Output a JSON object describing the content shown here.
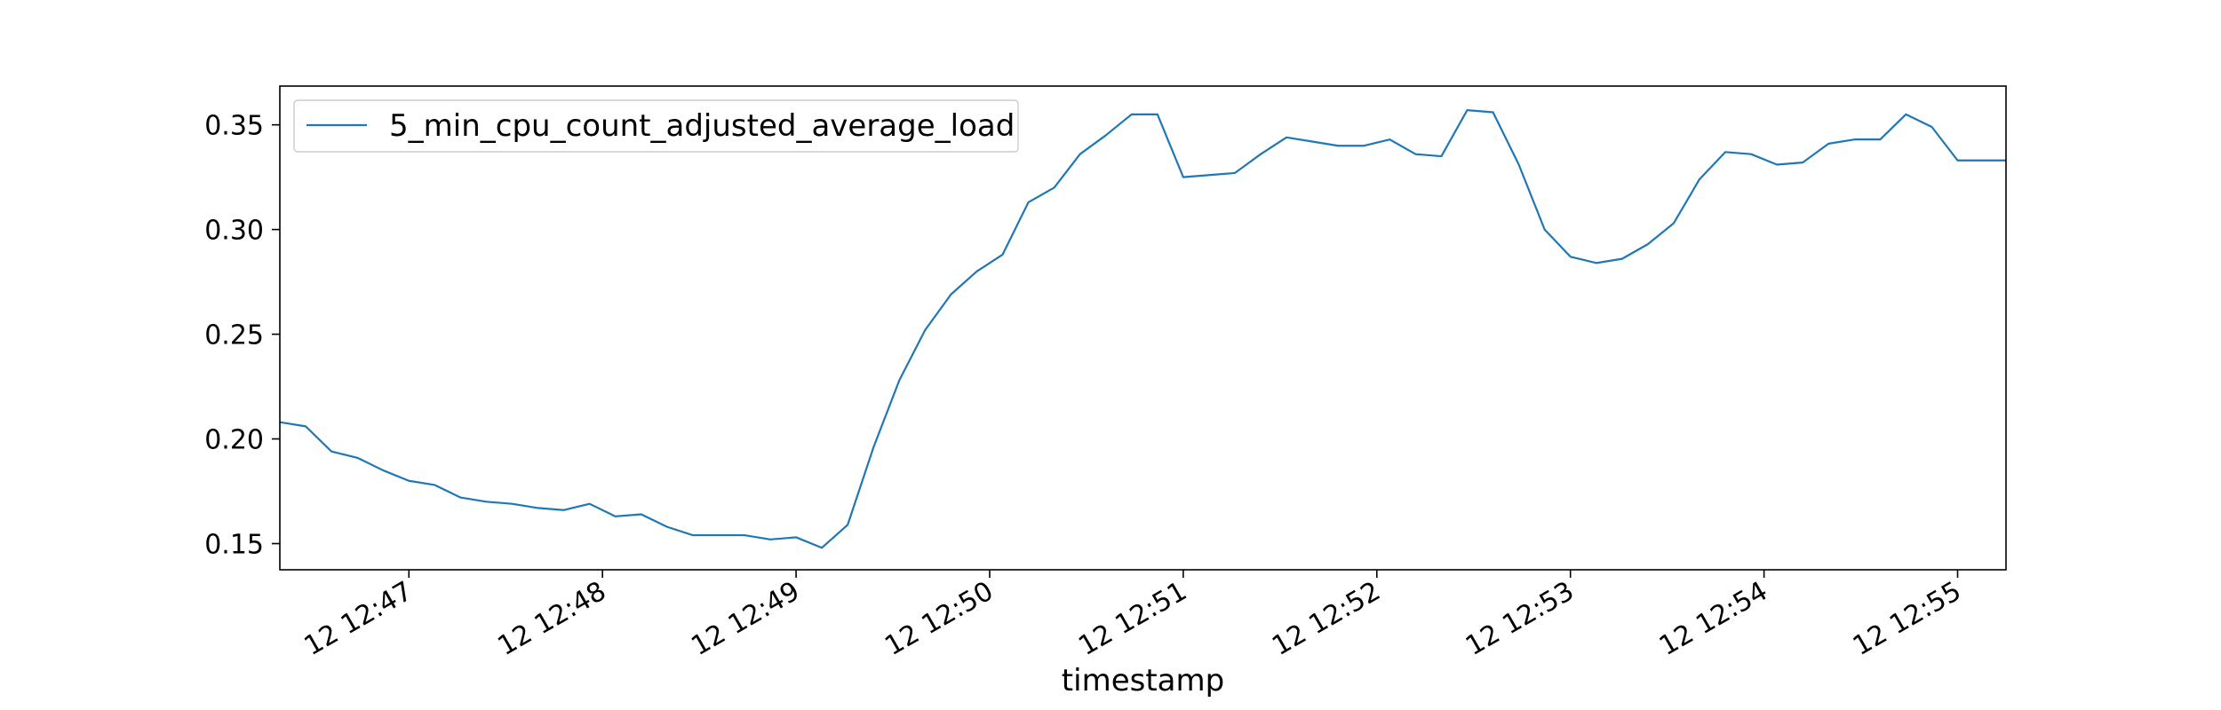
{
  "chart_data": {
    "type": "line",
    "title": "",
    "xlabel": "timestamp",
    "ylabel": "",
    "xlim": [
      "12:46:20",
      "12:55:15"
    ],
    "ylim": [
      0.1375,
      0.3685
    ],
    "x_ticks": [
      "12:47",
      "12:48",
      "12:49",
      "12:50",
      "12:51",
      "12:52",
      "12:53",
      "12:54",
      "12:55"
    ],
    "x_tick_labels": [
      "12 12:47",
      "12 12:48",
      "12 12:49",
      "12 12:50",
      "12 12:51",
      "12 12:52",
      "12 12:53",
      "12 12:54",
      "12 12:55"
    ],
    "y_ticks": [
      0.15,
      0.2,
      0.25,
      0.3,
      0.35
    ],
    "y_tick_labels": [
      "0.15",
      "0.20",
      "0.25",
      "0.30",
      "0.35"
    ],
    "grid": false,
    "legend_position": "top-left",
    "line_color": "#1f77b4",
    "series": [
      {
        "name": "5_min_cpu_count_adjusted_average_load",
        "x": [
          "12:46:20",
          "12:46:28",
          "12:46:36",
          "12:46:44",
          "12:46:52",
          "12:47:00",
          "12:47:08",
          "12:47:16",
          "12:47:24",
          "12:47:32",
          "12:47:40",
          "12:47:48",
          "12:47:56",
          "12:48:04",
          "12:48:12",
          "12:48:20",
          "12:48:28",
          "12:48:36",
          "12:48:44",
          "12:48:52",
          "12:49:00",
          "12:49:08",
          "12:49:16",
          "12:49:24",
          "12:49:32",
          "12:49:40",
          "12:49:48",
          "12:49:56",
          "12:50:04",
          "12:50:12",
          "12:50:20",
          "12:50:28",
          "12:50:36",
          "12:50:44",
          "12:50:52",
          "12:51:00",
          "12:51:08",
          "12:51:16",
          "12:51:24",
          "12:51:32",
          "12:51:40",
          "12:51:48",
          "12:51:56",
          "12:52:04",
          "12:52:12",
          "12:52:20",
          "12:52:28",
          "12:52:36",
          "12:52:44",
          "12:52:52",
          "12:53:00",
          "12:53:08",
          "12:53:16",
          "12:53:24",
          "12:53:32",
          "12:53:40",
          "12:53:48",
          "12:53:56",
          "12:54:04",
          "12:54:12",
          "12:54:20",
          "12:54:28",
          "12:54:36",
          "12:54:44",
          "12:54:52",
          "12:55:00",
          "12:55:08",
          "12:55:15"
        ],
        "values": [
          0.208,
          0.206,
          0.194,
          0.191,
          0.185,
          0.18,
          0.178,
          0.172,
          0.17,
          0.169,
          0.167,
          0.166,
          0.169,
          0.163,
          0.164,
          0.158,
          0.154,
          0.154,
          0.154,
          0.152,
          0.153,
          0.148,
          0.159,
          0.196,
          0.228,
          0.252,
          0.269,
          0.28,
          0.288,
          0.313,
          0.32,
          0.336,
          0.345,
          0.355,
          0.355,
          0.325,
          0.326,
          0.327,
          0.336,
          0.344,
          0.342,
          0.34,
          0.34,
          0.343,
          0.336,
          0.335,
          0.357,
          0.356,
          0.331,
          0.3,
          0.287,
          0.284,
          0.286,
          0.293,
          0.303,
          0.324,
          0.337,
          0.336,
          0.331,
          0.332,
          0.341,
          0.343,
          0.343,
          0.355,
          0.349,
          0.333,
          0.333,
          0.333
        ]
      }
    ]
  }
}
